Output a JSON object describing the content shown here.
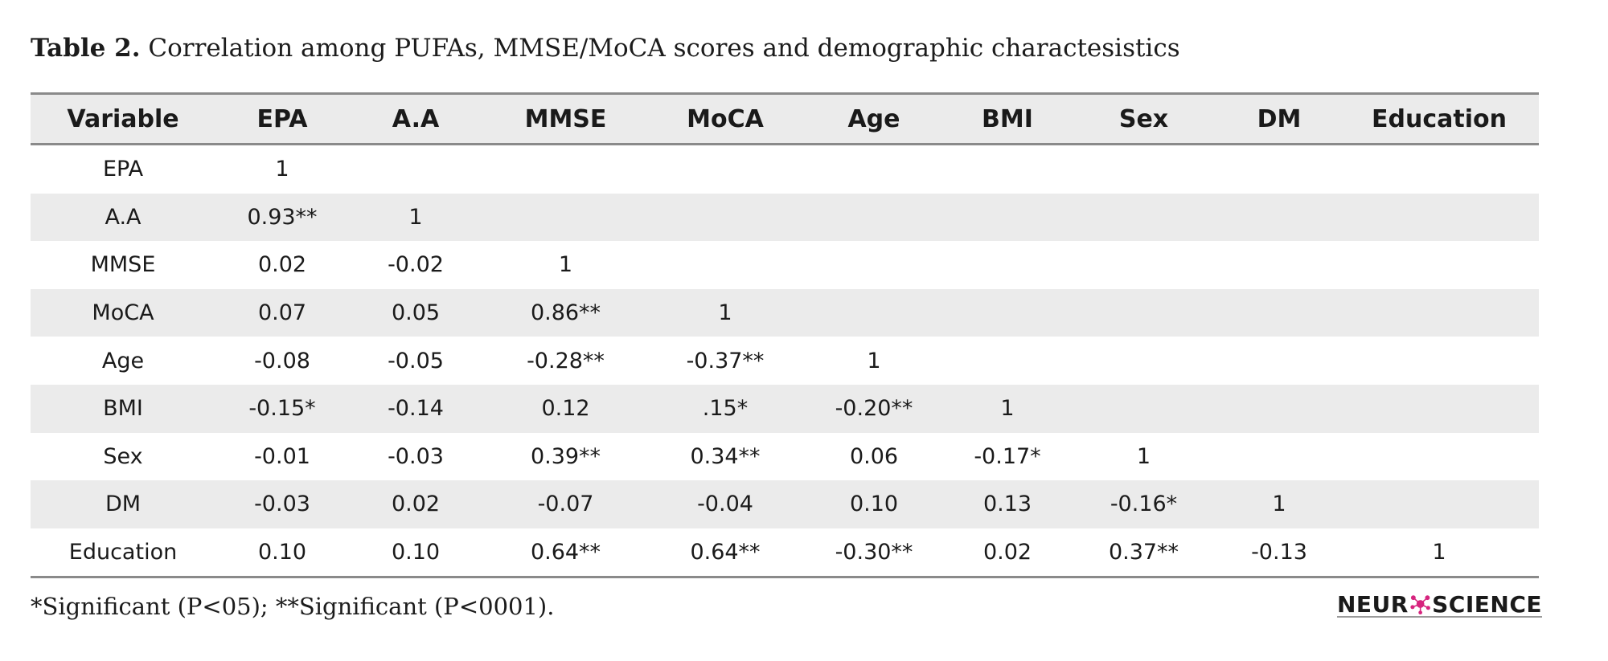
{
  "caption": {
    "label": "Table 2.",
    "text": "Correlation among PUFAs, MMSE/MoCA scores and demographic charactesistics"
  },
  "table": {
    "headers": [
      "Variable",
      "EPA",
      "A.A",
      "MMSE",
      "MoCA",
      "Age",
      "BMI",
      "Sex",
      "DM",
      "Education"
    ],
    "rows": [
      [
        "EPA",
        "1",
        "",
        "",
        "",
        "",
        "",
        "",
        "",
        ""
      ],
      [
        "A.A",
        "0.93**",
        "1",
        "",
        "",
        "",
        "",
        "",
        "",
        ""
      ],
      [
        "MMSE",
        "0.02",
        "-0.02",
        "1",
        "",
        "",
        "",
        "",
        "",
        ""
      ],
      [
        "MoCA",
        "0.07",
        "0.05",
        "0.86**",
        "1",
        "",
        "",
        "",
        "",
        ""
      ],
      [
        "Age",
        "-0.08",
        "-0.05",
        "-0.28**",
        "-0.37**",
        "1",
        "",
        "",
        "",
        ""
      ],
      [
        "BMI",
        "-0.15*",
        "-0.14",
        "0.12",
        ".15*",
        "-0.20**",
        "1",
        "",
        "",
        ""
      ],
      [
        "Sex",
        "-0.01",
        "-0.03",
        "0.39**",
        "0.34**",
        "0.06",
        "-0.17*",
        "1",
        "",
        ""
      ],
      [
        "DM",
        "-0.03",
        "0.02",
        "-0.07",
        "-0.04",
        "0.10",
        "0.13",
        "-0.16*",
        "1",
        ""
      ],
      [
        "Education",
        "0.10",
        "0.10",
        "0.64**",
        "0.64**",
        "-0.30**",
        "0.02",
        "0.37**",
        "-0.13",
        "1"
      ]
    ]
  },
  "footnote": "*Significant (P<05); **Significant (P<0001).",
  "logo": {
    "text_left": "NEUR",
    "text_right": "SCIENCE",
    "accent_color": "#d6247e",
    "icon": "neuron-cluster-icon"
  }
}
